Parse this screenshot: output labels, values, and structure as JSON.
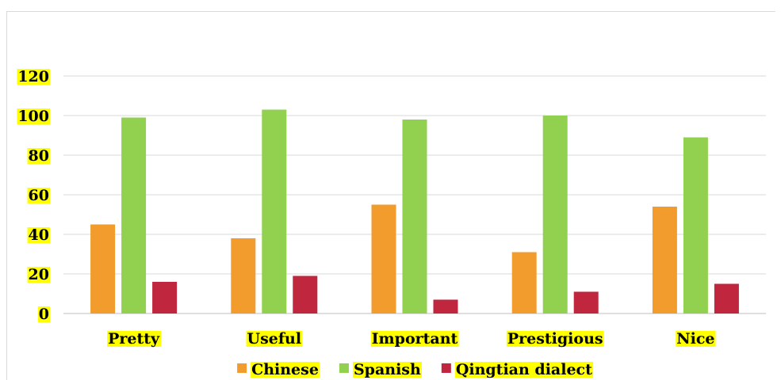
{
  "chart_data": {
    "type": "bar",
    "title": "",
    "xlabel": "",
    "ylabel": "",
    "categories": [
      "Pretty",
      "Useful",
      "Important",
      "Prestigious",
      "Nice"
    ],
    "series": [
      {
        "name": "Chinese",
        "color": "#f39c2e",
        "values": [
          45,
          38,
          55,
          31,
          54
        ]
      },
      {
        "name": "Spanish",
        "color": "#92d050",
        "values": [
          99,
          103,
          98,
          100,
          89
        ]
      },
      {
        "name": "Qingtian dialect",
        "color": "#c0263d",
        "values": [
          16,
          19,
          7,
          11,
          15
        ]
      }
    ],
    "ylim": [
      0,
      120
    ],
    "yticks": [
      "0",
      "20",
      "40",
      "60",
      "80",
      "100",
      "120"
    ],
    "grid": true,
    "legend_position": "bottom",
    "label_highlight_color": "#ffff00"
  }
}
